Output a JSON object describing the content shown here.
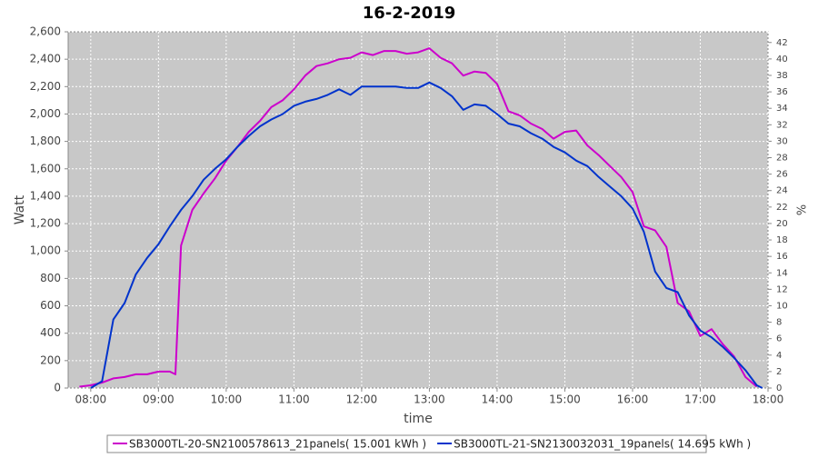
{
  "chart_data": {
    "type": "line",
    "title": "16-2-2019",
    "x_label": "time",
    "y_label": "Watt",
    "y2_label": "%",
    "xlim": [
      "07:40",
      "18:00"
    ],
    "xticks": [
      "08:00",
      "09:00",
      "10:00",
      "11:00",
      "12:00",
      "13:00",
      "14:00",
      "15:00",
      "16:00",
      "17:00",
      "18:00"
    ],
    "ylim": [
      0,
      2600
    ],
    "yticks": [
      0,
      200,
      400,
      600,
      800,
      {
        "value": 1000,
        "label": "1,000"
      },
      {
        "value": 1200,
        "label": "1,200"
      },
      {
        "value": 1400,
        "label": "1,400"
      },
      {
        "value": 1600,
        "label": "1,600"
      },
      {
        "value": 1800,
        "label": "1,800"
      },
      {
        "value": 2000,
        "label": "2,000"
      },
      {
        "value": 2200,
        "label": "2,200"
      },
      {
        "value": 2400,
        "label": "2,400"
      },
      {
        "value": 2600,
        "label": "2,600"
      }
    ],
    "y2lim": [
      0,
      43.3
    ],
    "y2ticks": [
      0,
      2,
      4,
      6,
      8,
      10,
      12,
      14,
      16,
      18,
      20,
      22,
      24,
      26,
      28,
      30,
      32,
      34,
      36,
      38,
      40,
      42
    ],
    "grid": true,
    "series": [
      {
        "name": "SB3000TL-20-SN2100578613_21panels( 15.001 kWh )",
        "color": "#cc00cc",
        "x": [
          "07:50",
          "08:00",
          "08:10",
          "08:20",
          "08:30",
          "08:40",
          "08:50",
          "09:00",
          "09:10",
          "09:15",
          "09:20",
          "09:30",
          "09:40",
          "09:50",
          "10:00",
          "10:10",
          "10:20",
          "10:30",
          "10:40",
          "10:50",
          "11:00",
          "11:10",
          "11:20",
          "11:30",
          "11:40",
          "11:50",
          "12:00",
          "12:10",
          "12:20",
          "12:30",
          "12:40",
          "12:50",
          "13:00",
          "13:10",
          "13:20",
          "13:30",
          "13:40",
          "13:50",
          "14:00",
          "14:10",
          "14:20",
          "14:30",
          "14:40",
          "14:50",
          "15:00",
          "15:10",
          "15:20",
          "15:30",
          "15:40",
          "15:50",
          "16:00",
          "16:10",
          "16:20",
          "16:30",
          "16:40",
          "16:50",
          "17:00",
          "17:10",
          "17:20",
          "17:30",
          "17:40",
          "17:50"
        ],
        "values": [
          10,
          20,
          40,
          70,
          80,
          100,
          100,
          120,
          120,
          100,
          1040,
          1300,
          1420,
          1530,
          1660,
          1760,
          1870,
          1950,
          2050,
          2100,
          2180,
          2280,
          2350,
          2370,
          2400,
          2410,
          2450,
          2430,
          2460,
          2460,
          2440,
          2450,
          2480,
          2410,
          2370,
          2280,
          2310,
          2300,
          2220,
          2020,
          1990,
          1930,
          1890,
          1820,
          1870,
          1880,
          1770,
          1700,
          1620,
          1540,
          1430,
          1180,
          1150,
          1030,
          620,
          560,
          380,
          430,
          320,
          230,
          80,
          10
        ]
      },
      {
        "name": "SB3000TL-21-SN2130032031_19panels( 14.695 kWh )",
        "color": "#0033cc",
        "x": [
          "08:00",
          "08:10",
          "08:20",
          "08:30",
          "08:40",
          "08:50",
          "09:00",
          "09:10",
          "09:20",
          "09:30",
          "09:40",
          "09:50",
          "10:00",
          "10:10",
          "10:20",
          "10:30",
          "10:40",
          "10:50",
          "11:00",
          "11:10",
          "11:20",
          "11:30",
          "11:40",
          "11:50",
          "12:00",
          "12:10",
          "12:20",
          "12:30",
          "12:40",
          "12:50",
          "13:00",
          "13:10",
          "13:20",
          "13:30",
          "13:40",
          "13:50",
          "14:00",
          "14:10",
          "14:20",
          "14:30",
          "14:40",
          "14:50",
          "15:00",
          "15:10",
          "15:20",
          "15:30",
          "15:40",
          "15:50",
          "16:00",
          "16:10",
          "16:20",
          "16:30",
          "16:40",
          "16:50",
          "17:00",
          "17:10",
          "17:20",
          "17:30",
          "17:40",
          "17:50",
          "17:55"
        ],
        "values": [
          0,
          50,
          500,
          620,
          830,
          950,
          1050,
          1180,
          1300,
          1400,
          1520,
          1600,
          1670,
          1760,
          1840,
          1910,
          1960,
          2000,
          2060,
          2090,
          2110,
          2140,
          2180,
          2140,
          2200,
          2200,
          2200,
          2200,
          2190,
          2190,
          2230,
          2190,
          2130,
          2030,
          2070,
          2060,
          2000,
          1930,
          1910,
          1860,
          1820,
          1760,
          1720,
          1660,
          1620,
          1540,
          1470,
          1400,
          1310,
          1140,
          850,
          730,
          700,
          530,
          420,
          370,
          300,
          220,
          130,
          20,
          0
        ]
      }
    ]
  }
}
